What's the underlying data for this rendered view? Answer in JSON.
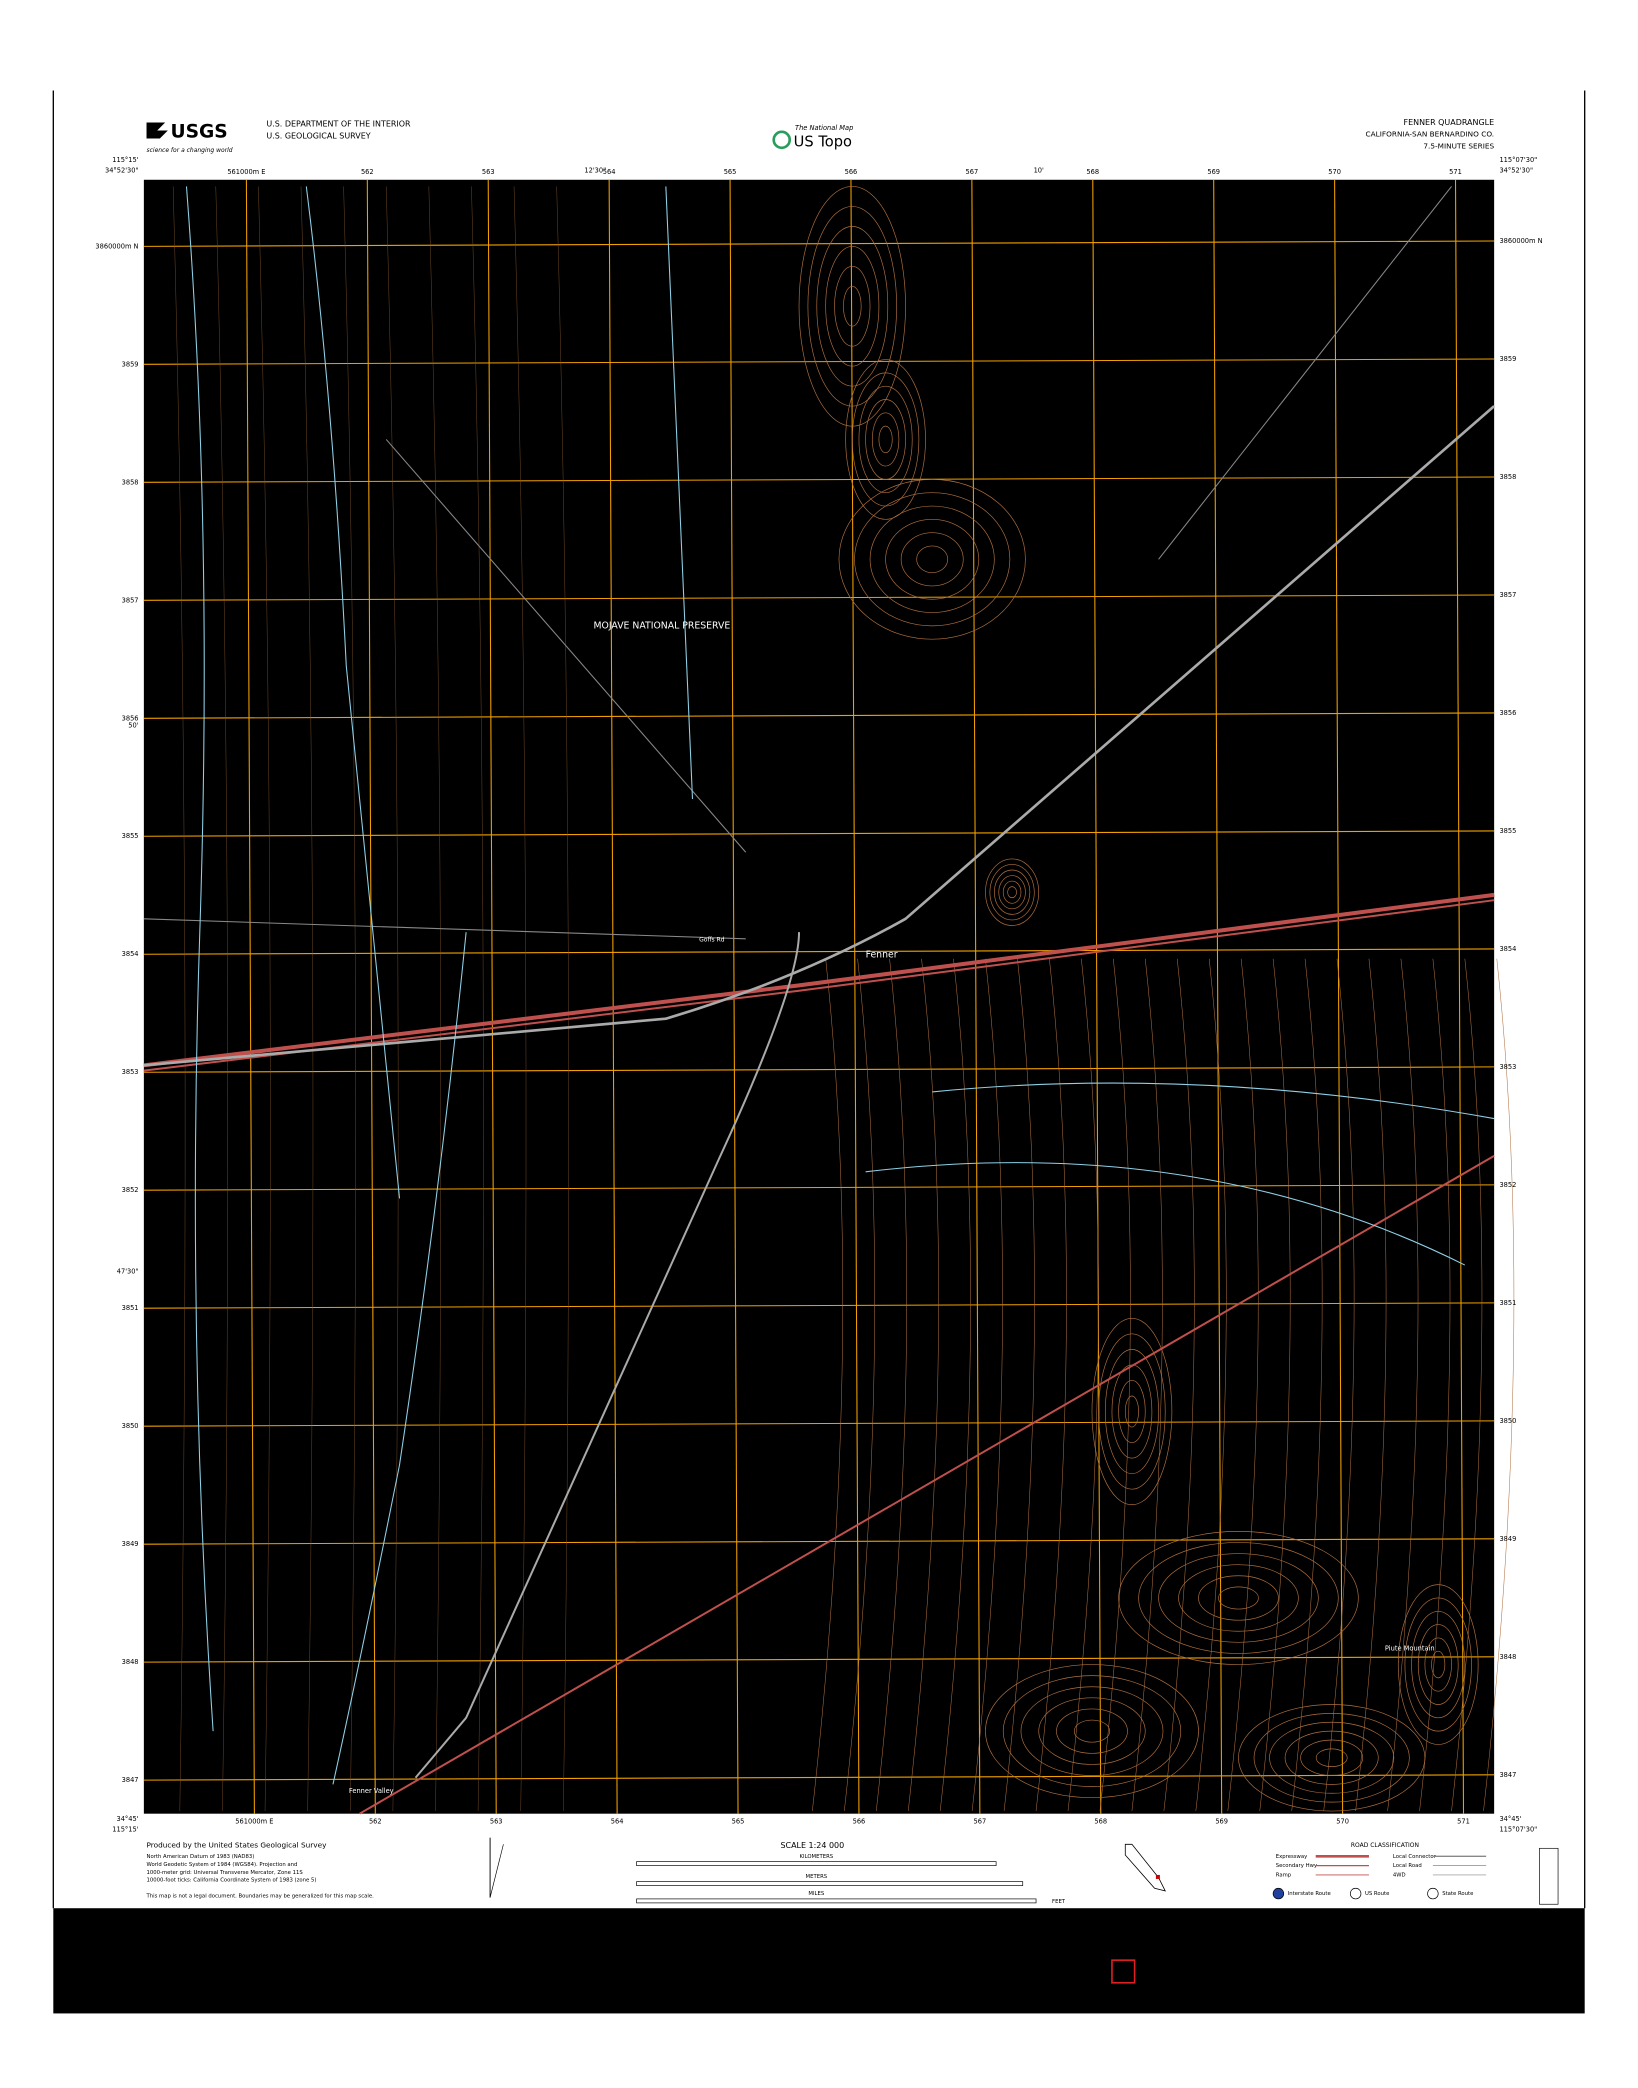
{
  "header": {
    "usgs_logo": "USGS",
    "usgs_tagline": "science for a changing world",
    "agency_line1": "U.S. DEPARTMENT OF THE INTERIOR",
    "agency_line2": "U.S. GEOLOGICAL SURVEY",
    "national_map": "The National Map",
    "us_topo": "US Topo",
    "quad_title": "FENNER QUADRANGLE",
    "quad_county": "CALIFORNIA-SAN BERNARDINO CO.",
    "quad_series": "7.5-MINUTE SERIES"
  },
  "map": {
    "corners": {
      "top_left_lon": "115°15'",
      "top_left_lat": "34°52'30\"",
      "top_right_lon": "115°07'30\"",
      "top_right_lat": "34°52'30\"",
      "bottom_left_lon": "115°15'",
      "bottom_left_lat": "34°45'",
      "bottom_right_lon": "115°07'30\"",
      "bottom_right_lat": "34°45'"
    },
    "top_mid_lon": "12'30\"",
    "top_ten": "10'",
    "left_mid_lat": "50'",
    "left_quarter_lat": "47'30\"",
    "eastings": [
      "561000m E",
      "562",
      "563",
      "564",
      "565",
      "566",
      "567",
      "568",
      "569",
      "570",
      "571"
    ],
    "northings": [
      "3860000m N",
      "3859",
      "3858",
      "3857",
      "3856",
      "3855",
      "3854",
      "3853",
      "3852",
      "3851",
      "3850",
      "3849",
      "3848",
      "3847"
    ],
    "places": [
      "MOJAVE NATIONAL PRESERVE",
      "Fenner",
      "Fenner Valley",
      "Piute Mountain",
      "Goffs Rd"
    ]
  },
  "footer": {
    "producer": "Produced by the United States Geological Survey",
    "datum_notes": [
      "North American Datum of 1983 (NAD83)",
      "World Geodetic System of 1984 (WGS84). Projection and",
      "1000-meter grid: Universal Transverse Mercator, Zone 11S",
      "10000-foot ticks: California Coordinate System of 1983 (zone 5)"
    ],
    "legal_note": "This map is not a legal document. Boundaries may be generalized for this map scale.",
    "scale": "SCALE 1:24 000",
    "kilometers": "KILOMETERS",
    "meters": "METERS",
    "miles": "MILES",
    "feet": "FEET",
    "road_title": "ROAD CLASSIFICATION",
    "roads": [
      "Expressway",
      "Secondary Hwy",
      "Ramp",
      "Local Connector",
      "Local Road",
      "4WD"
    ],
    "route_types": [
      "Interstate Route",
      "US Route",
      "State Route"
    ]
  }
}
